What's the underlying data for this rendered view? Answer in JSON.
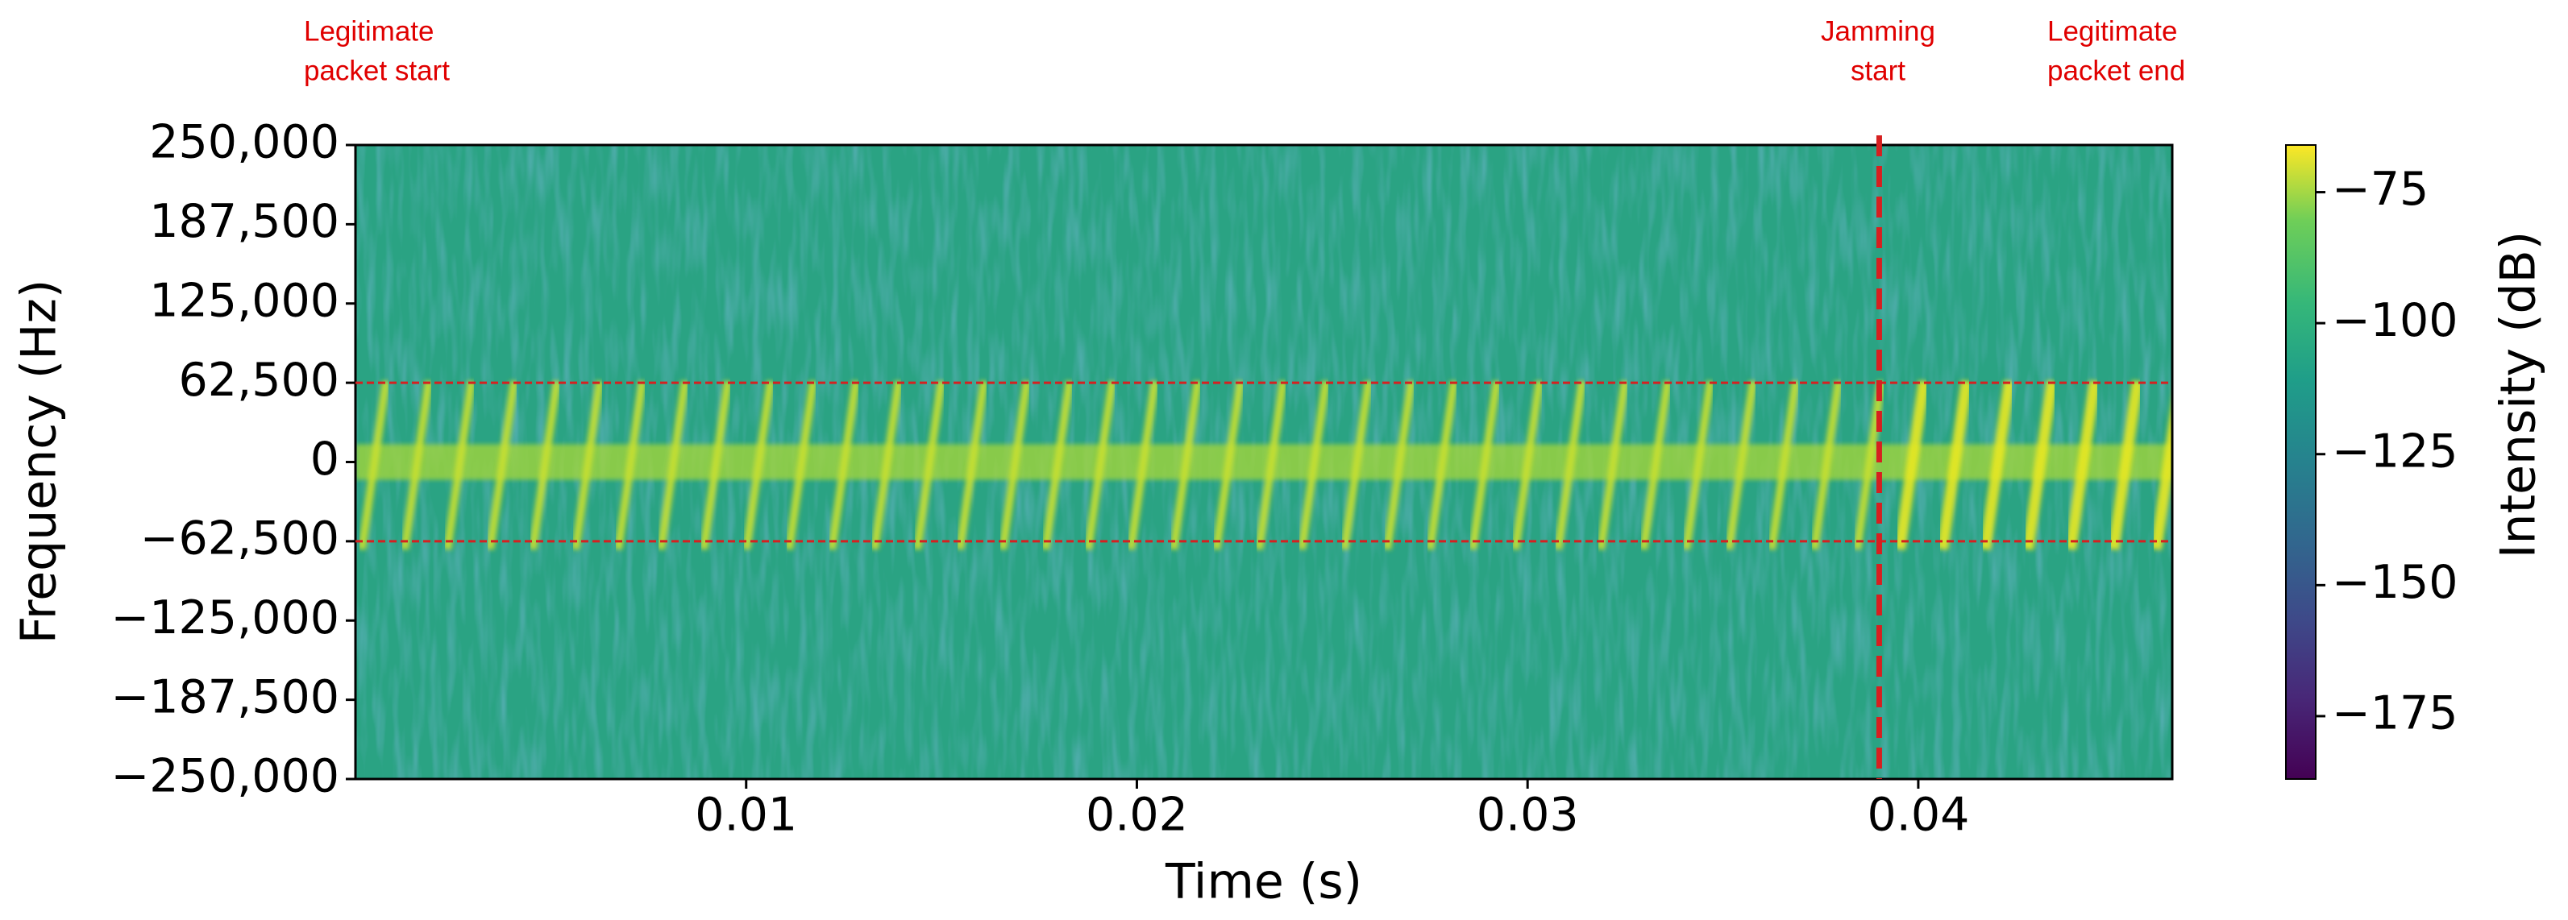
{
  "chart_data": {
    "type": "spectrogram",
    "x_label": "Time (s)",
    "y_label": "Frequency (Hz)",
    "colorbar_label": "Intensity (dB)",
    "xlim": [
      0,
      0.0465
    ],
    "xticks": [
      0.01,
      0.02,
      0.03,
      0.04
    ],
    "ylim": [
      -250000,
      250000
    ],
    "yticks": [
      {
        "value": 250000,
        "label": "250,000"
      },
      {
        "value": 187500,
        "label": "187,500"
      },
      {
        "value": 125000,
        "label": "125,000"
      },
      {
        "value": 62500,
        "label": "62,500"
      },
      0,
      {
        "value": -62500,
        "label": "−62,500"
      },
      {
        "value": -125000,
        "label": "−125,000"
      },
      {
        "value": -187500,
        "label": "−187,500"
      },
      {
        "value": -250000,
        "label": "−250,000"
      }
    ],
    "colormap": "viridis",
    "clim": [
      -187,
      -66
    ],
    "cticks": [
      {
        "value": -75,
        "label": "−75"
      },
      {
        "value": -100,
        "label": "−100"
      },
      {
        "value": -125,
        "label": "−125"
      },
      {
        "value": -150,
        "label": "−150"
      },
      {
        "value": -175,
        "label": "−175"
      }
    ],
    "hlines": [
      62500,
      -62500
    ],
    "vline": 0.039,
    "line_color": "#d62020",
    "annotations": [
      {
        "text": [
          "Legitimate",
          "packet start"
        ]
      },
      {
        "text": [
          "Jamming",
          "start"
        ]
      },
      {
        "text": [
          "Legitimate",
          "packet  end"
        ]
      }
    ]
  }
}
